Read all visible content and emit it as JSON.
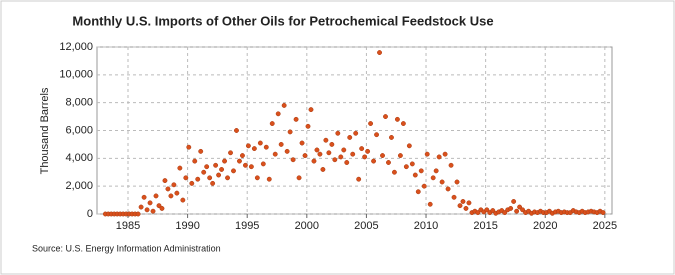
{
  "chart_data": {
    "type": "scatter",
    "title": "Monthly U.S. Imports of Other Oils for Petrochemical Feedstock Use",
    "y_label": "Thousand Barrels",
    "source": "Source: U.S. Energy Information Administration",
    "color": "#d9501c",
    "grid": true,
    "xlim": [
      1982.4,
      2025.6
    ],
    "ylim": [
      0,
      12000
    ],
    "xticks": [
      1985,
      1990,
      1995,
      2000,
      2005,
      2010,
      2015,
      2020,
      2025
    ],
    "yticks": [
      0,
      {
        "value": 2000,
        "label": "2,000"
      },
      {
        "value": 4000,
        "label": "4,000"
      },
      {
        "value": 6000,
        "label": "6,000"
      },
      {
        "value": 8000,
        "label": "8,000"
      },
      {
        "value": 10000,
        "label": "10,000"
      },
      {
        "value": 12000,
        "label": "12,000"
      }
    ],
    "x": [
      1983.1,
      1983.35,
      1983.6,
      1983.85,
      1984.1,
      1984.35,
      1984.6,
      1984.85,
      1985.1,
      1985.35,
      1985.6,
      1985.85,
      1986.1,
      1986.35,
      1986.6,
      1986.85,
      1987.1,
      1987.35,
      1987.6,
      1987.85,
      1988.1,
      1988.35,
      1988.6,
      1988.85,
      1989.1,
      1989.35,
      1989.6,
      1989.85,
      1990.1,
      1990.35,
      1990.6,
      1990.85,
      1991.1,
      1991.35,
      1991.6,
      1991.85,
      1992.1,
      1992.35,
      1992.6,
      1992.85,
      1993.1,
      1993.35,
      1993.6,
      1993.85,
      1994.1,
      1994.35,
      1994.6,
      1994.85,
      1995.1,
      1995.35,
      1995.6,
      1995.85,
      1996.1,
      1996.35,
      1996.6,
      1996.85,
      1997.1,
      1997.35,
      1997.6,
      1997.85,
      1998.1,
      1998.35,
      1998.6,
      1998.85,
      1999.1,
      1999.35,
      1999.6,
      1999.85,
      2000.1,
      2000.35,
      2000.6,
      2000.85,
      2001.1,
      2001.35,
      2001.6,
      2001.85,
      2002.1,
      2002.35,
      2002.6,
      2002.85,
      2003.1,
      2003.35,
      2003.6,
      2003.85,
      2004.1,
      2004.35,
      2004.6,
      2004.85,
      2005.1,
      2005.35,
      2005.6,
      2005.85,
      2006.1,
      2006.35,
      2006.6,
      2006.85,
      2007.1,
      2007.35,
      2007.6,
      2007.85,
      2008.1,
      2008.35,
      2008.6,
      2008.85,
      2009.1,
      2009.35,
      2009.6,
      2009.85,
      2010.1,
      2010.35,
      2010.6,
      2010.85,
      2011.1,
      2011.35,
      2011.6,
      2011.85,
      2012.1,
      2012.35,
      2012.6,
      2012.85,
      2013.1,
      2013.35,
      2013.6,
      2013.85,
      2014.1,
      2014.35,
      2014.6,
      2014.85,
      2015.1,
      2015.35,
      2015.6,
      2015.85,
      2016.1,
      2016.35,
      2016.6,
      2016.85,
      2017.1,
      2017.35,
      2017.6,
      2017.85,
      2018.1,
      2018.35,
      2018.6,
      2018.85,
      2019.1,
      2019.35,
      2019.6,
      2019.85,
      2020.1,
      2020.35,
      2020.6,
      2020.85,
      2021.1,
      2021.35,
      2021.6,
      2021.85,
      2022.1,
      2022.35,
      2022.6,
      2022.85,
      2023.1,
      2023.35,
      2023.6,
      2023.85,
      2024.1,
      2024.35,
      2024.6,
      2024.85
    ],
    "values": [
      0,
      0,
      0,
      0,
      0,
      0,
      0,
      0,
      0,
      0,
      0,
      0,
      500,
      1200,
      300,
      800,
      200,
      1300,
      600,
      400,
      2400,
      1800,
      1300,
      2100,
      1500,
      3300,
      1000,
      2600,
      4800,
      2200,
      3800,
      2500,
      4500,
      3000,
      3400,
      2600,
      2200,
      3500,
      2800,
      3200,
      3800,
      2600,
      4400,
      3100,
      6000,
      3800,
      4200,
      3500,
      4900,
      3400,
      4700,
      2600,
      5100,
      3600,
      4800,
      2500,
      6500,
      4300,
      7200,
      5000,
      7800,
      4500,
      5900,
      3900,
      6800,
      2600,
      5100,
      4200,
      6300,
      7500,
      3800,
      4600,
      4300,
      3200,
      5300,
      4400,
      5000,
      3900,
      5800,
      4100,
      4600,
      3700,
      5500,
      4300,
      5800,
      2500,
      4700,
      4100,
      4500,
      6500,
      3800,
      5700,
      11600,
      4200,
      7000,
      3700,
      5500,
      3000,
      6800,
      4200,
      6500,
      3400,
      4900,
      3600,
      2800,
      1600,
      3100,
      2000,
      4300,
      700,
      2600,
      3100,
      4100,
      2300,
      4300,
      1800,
      3500,
      1200,
      2300,
      600,
      900,
      400,
      800,
      100,
      200,
      100,
      300,
      150,
      300,
      100,
      250,
      50,
      150,
      250,
      100,
      300,
      400,
      900,
      200,
      500,
      300,
      100,
      200,
      50,
      150,
      100,
      200,
      100,
      100,
      200,
      50,
      150,
      200,
      100,
      150,
      100,
      100,
      250,
      150,
      100,
      200,
      100,
      150,
      200,
      150,
      100,
      200,
      100
    ]
  }
}
